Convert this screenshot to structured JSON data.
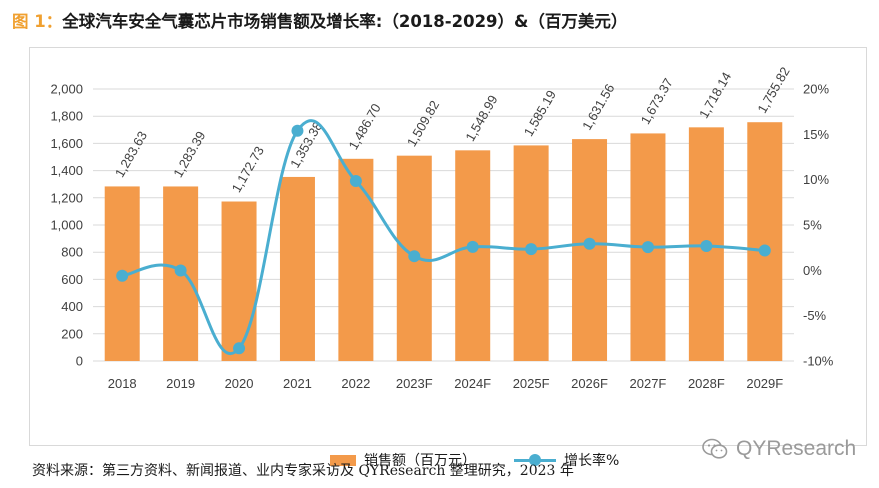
{
  "header": {
    "figure_label": "图 1：",
    "title_text": "全球汽车安全气囊芯片市场销售额及增长率:（2018-2029）&（百万美元）"
  },
  "footer": {
    "source_text": "资料来源：第三方资料、新闻报道、业内专家采访及 QYResearch 整理研究，2023 年",
    "watermark_text": "QYResearch"
  },
  "colors": {
    "bar": "#f39a4a",
    "line": "#4aaed0",
    "grid": "#d9d9d9",
    "text": "#404040"
  },
  "chart_data": {
    "type": "bar",
    "title": "全球汽车安全气囊芯片市场销售额及增长率:（2018-2029）&（百万美元）",
    "categories": [
      "2018",
      "2019",
      "2020",
      "2021",
      "2022",
      "2023F",
      "2024F",
      "2025F",
      "2026F",
      "2027F",
      "2028F",
      "2029F"
    ],
    "series": [
      {
        "name": "销售额（百万元）",
        "type": "bar",
        "axis": "left",
        "values": [
          1283.63,
          1283.39,
          1172.73,
          1353.38,
          1486.7,
          1509.82,
          1548.99,
          1585.19,
          1631.56,
          1673.37,
          1718.14,
          1755.82
        ],
        "labels": [
          "1,283.63",
          "1,283.39",
          "1,172.73",
          "1,353.38",
          "1,486.70",
          "1,509.82",
          "1,548.99",
          "1,585.19",
          "1,631.56",
          "1,673.37",
          "1,718.14",
          "1,755.82"
        ]
      },
      {
        "name": "增长率%",
        "type": "line",
        "axis": "right",
        "values": [
          -0.6,
          -0.02,
          -8.6,
          15.4,
          9.85,
          1.56,
          2.59,
          2.34,
          2.93,
          2.56,
          2.68,
          2.19
        ]
      }
    ],
    "y_left": {
      "min": 0,
      "max": 2000,
      "ticks": [
        0,
        200,
        400,
        600,
        800,
        1000,
        1200,
        1400,
        1600,
        1800,
        2000
      ],
      "tick_labels": [
        "0",
        "200",
        "400",
        "600",
        "800",
        "1,000",
        "1,200",
        "1,400",
        "1,600",
        "1,800",
        "2,000"
      ]
    },
    "y_right": {
      "min": -10,
      "max": 20,
      "ticks": [
        -10,
        -5,
        0,
        5,
        10,
        15,
        20
      ],
      "tick_labels": [
        "-10%",
        "-5%",
        "0%",
        "5%",
        "10%",
        "15%",
        "20%"
      ]
    },
    "legend_position": "bottom-center",
    "grid": true
  }
}
